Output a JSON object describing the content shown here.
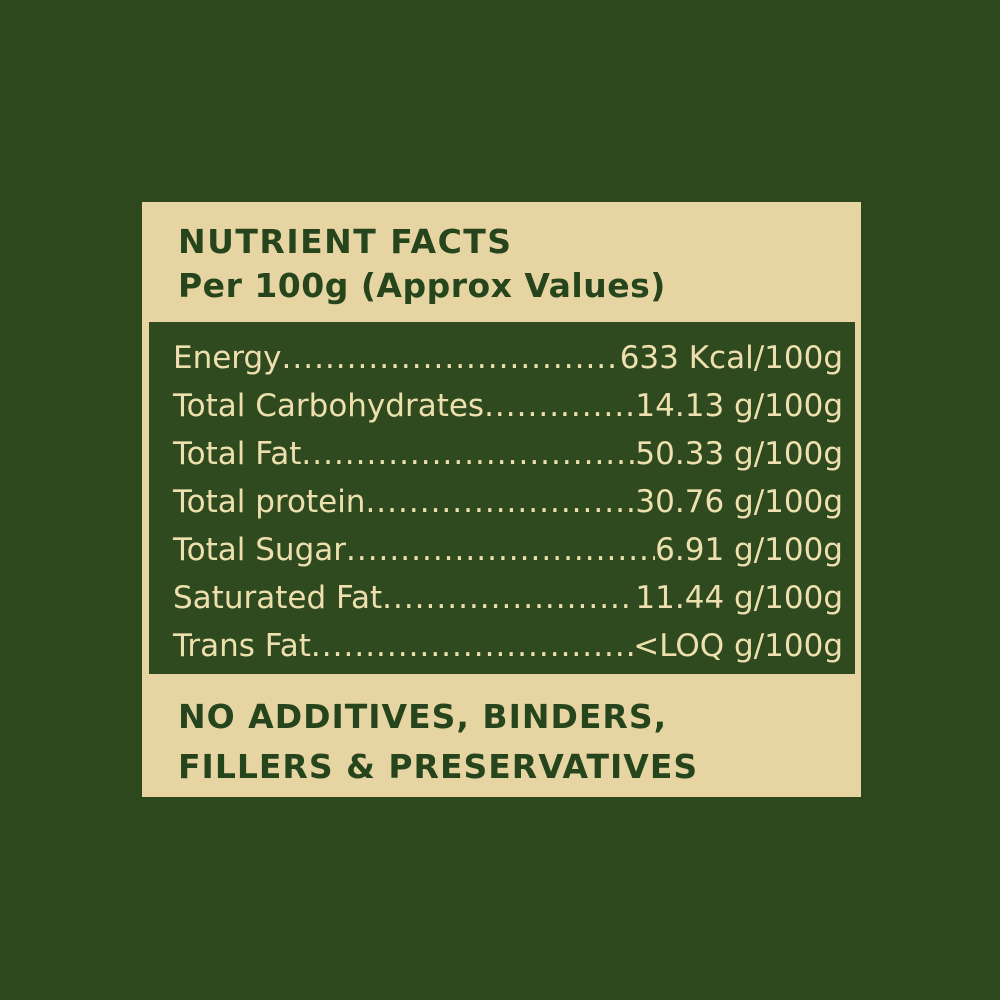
{
  "label": {
    "header": {
      "title": "NUTRIENT FACTS",
      "subtitle": "Per 100g (Approx Values)"
    },
    "table": {
      "leader": "........................................................................",
      "rows": [
        {
          "label": "Energy",
          "value": "633 Kcal/100g"
        },
        {
          "label": "Total Carbohydrates",
          "value": "14.13 g/100g"
        },
        {
          "label": "Total Fat",
          "value": "50.33 g/100g"
        },
        {
          "label": "Total protein",
          "value": "30.76 g/100g"
        },
        {
          "label": "Total Sugar",
          "value": "6.91 g/100g"
        },
        {
          "label": "Saturated Fat",
          "value": "11.44 g/100g"
        },
        {
          "label": "Trans Fat",
          "value": "<LOQ g/100g"
        }
      ]
    },
    "footer": {
      "line1": "NO ADDITIVES, BINDERS,",
      "line2": "FILLERS & PRESERVATIVES"
    }
  },
  "colors": {
    "background_green": "#2d481d",
    "panel_cream": "#e6d5a2",
    "table_green": "#2e4a1e",
    "heading_green": "#26451d",
    "row_text_cream": "#eee0ae"
  }
}
